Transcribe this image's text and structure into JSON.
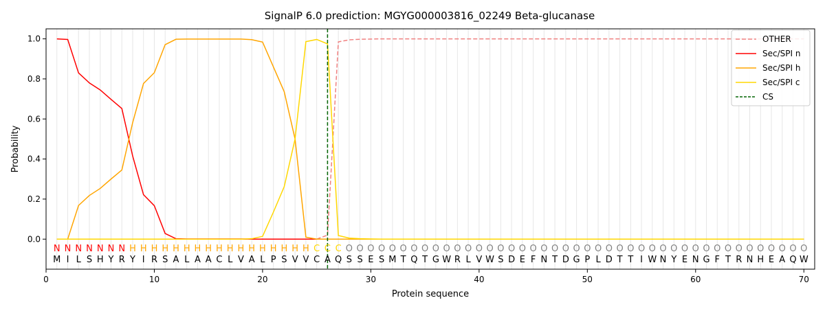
{
  "chart_data": {
    "type": "line",
    "title": "SignalP 6.0 prediction: MGYG000003816_02249 Beta-glucanase",
    "xlabel": "Protein sequence",
    "ylabel": "Probability",
    "xlim": [
      0,
      71
    ],
    "ylim": [
      -0.15,
      1.05
    ],
    "x_ticks": [
      0,
      10,
      20,
      30,
      40,
      50,
      60,
      70
    ],
    "y_ticks": [
      0.0,
      0.2,
      0.4,
      0.6,
      0.8,
      1.0
    ],
    "legend_position": "top-right",
    "sequence": "MILSHYRYIRSALAACLVALPSVVCAQSSESMTQTGWRLVWSDEFNTDGPLDTTIWNYENGFTRNHEAQW",
    "labels": "NNNNNNNHHHHHHHHHHHHHHHHHCCCOOOOOOOOOOOOOOOOOOOOOOOOOOOOOOOOOOOOOOOOOOOO",
    "label_colors": {
      "N": "#ff0000",
      "H": "#ffa500",
      "C": "#ffd700",
      "O": "#808080"
    },
    "cleavage_site": 26,
    "series": [
      {
        "name": "OTHER",
        "color": "#f08080",
        "dash": true,
        "values": [
          0,
          0,
          0,
          0,
          0,
          0,
          0,
          0,
          0,
          0,
          0,
          0,
          0,
          0,
          0,
          0,
          0,
          0,
          0,
          0,
          0,
          0,
          0,
          0,
          0,
          0.02,
          0.985,
          0.995,
          0.998,
          0.999,
          1,
          1,
          1,
          1,
          1,
          1,
          1,
          1,
          1,
          1,
          1,
          1,
          1,
          1,
          1,
          1,
          1,
          1,
          1,
          1,
          1,
          1,
          1,
          1,
          1,
          1,
          1,
          1,
          1,
          1,
          1,
          1,
          1,
          1,
          1,
          1,
          1,
          1,
          1,
          1
        ]
      },
      {
        "name": "Sec/SPI n",
        "color": "#ff0000",
        "dash": false,
        "values": [
          1.0,
          0.997,
          0.83,
          0.78,
          0.745,
          0.698,
          0.652,
          0.415,
          0.222,
          0.167,
          0.028,
          0.002,
          0.001,
          0.001,
          0.001,
          0.001,
          0.001,
          0.001,
          0.0,
          0.0,
          0.0,
          0.0,
          0.0,
          0.0,
          0.0,
          0.0,
          0,
          0,
          0,
          0,
          0,
          0,
          0,
          0,
          0,
          0,
          0,
          0,
          0,
          0,
          0,
          0,
          0,
          0,
          0,
          0,
          0,
          0,
          0,
          0,
          0,
          0,
          0,
          0,
          0,
          0,
          0,
          0,
          0,
          0,
          0,
          0,
          0,
          0,
          0,
          0,
          0,
          0,
          0,
          0
        ]
      },
      {
        "name": "Sec/SPI h",
        "color": "#ffa500",
        "dash": false,
        "values": [
          0.0,
          0.0,
          0.168,
          0.218,
          0.253,
          0.3,
          0.345,
          0.582,
          0.777,
          0.831,
          0.971,
          0.998,
          0.999,
          0.999,
          0.999,
          0.999,
          0.999,
          0.999,
          0.996,
          0.984,
          0.86,
          0.736,
          0.5,
          0.01,
          0.0,
          0.0,
          0,
          0,
          0,
          0,
          0,
          0,
          0,
          0,
          0,
          0,
          0,
          0,
          0,
          0,
          0,
          0,
          0,
          0,
          0,
          0,
          0,
          0,
          0,
          0,
          0,
          0,
          0,
          0,
          0,
          0,
          0,
          0,
          0,
          0,
          0,
          0,
          0,
          0,
          0,
          0,
          0,
          0,
          0,
          0
        ]
      },
      {
        "name": "Sec/SPI c",
        "color": "#ffd700",
        "dash": false,
        "values": [
          0,
          0,
          0,
          0,
          0,
          0,
          0,
          0,
          0,
          0,
          0,
          0,
          0,
          0,
          0,
          0,
          0,
          0,
          0.002,
          0.014,
          0.135,
          0.262,
          0.5,
          0.986,
          0.997,
          0.975,
          0.018,
          0.005,
          0.002,
          0.001,
          0,
          0,
          0,
          0,
          0,
          0,
          0,
          0,
          0,
          0,
          0,
          0,
          0,
          0,
          0,
          0,
          0,
          0,
          0,
          0,
          0,
          0,
          0,
          0,
          0,
          0,
          0,
          0,
          0,
          0,
          0,
          0,
          0,
          0,
          0,
          0,
          0,
          0,
          0,
          0
        ]
      }
    ],
    "cs_legend": {
      "name": "CS",
      "color": "#006400"
    }
  }
}
